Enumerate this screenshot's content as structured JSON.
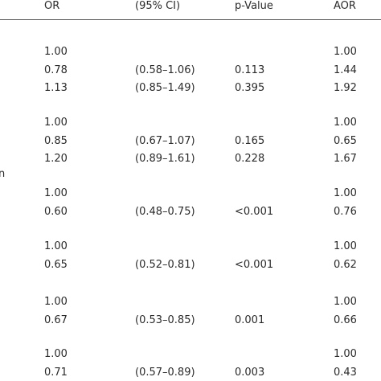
{
  "table": {
    "header": {
      "or": "OR",
      "ci": "(95% CI)",
      "p": "p-Value",
      "aor": "AOR"
    },
    "groups": [
      {
        "rows": [
          {
            "or": "1.00",
            "aor": "1.00"
          },
          {
            "or": "0.78",
            "ci": "(0.58–1.06)",
            "p": "0.113",
            "aor": "1.44"
          },
          {
            "or": "1.13",
            "ci": "(0.85–1.49)",
            "p": "0.395",
            "aor": "1.92"
          }
        ]
      },
      {
        "rows": [
          {
            "or": "1.00",
            "aor": "1.00"
          },
          {
            "or": "0.85",
            "ci": "(0.67–1.07)",
            "p": "0.165",
            "aor": "0.65"
          },
          {
            "or": "1.20",
            "ci": "(0.89–1.61)",
            "p": "0.228",
            "aor": "1.67"
          }
        ]
      },
      {
        "label": "n",
        "rows": [
          {
            "or": "1.00",
            "aor": "1.00"
          },
          {
            "or": "0.60",
            "ci": "(0.48–0.75)",
            "p": "<0.001",
            "aor": "0.76"
          }
        ]
      },
      {
        "rows": [
          {
            "or": "1.00",
            "aor": "1.00"
          },
          {
            "or": "0.65",
            "ci": "(0.52–0.81)",
            "p": "<0.001",
            "aor": "0.62"
          }
        ]
      },
      {
        "rows": [
          {
            "or": "1.00",
            "aor": "1.00"
          },
          {
            "or": "0.67",
            "ci": "(0.53–0.85)",
            "p": "0.001",
            "aor": "0.66"
          }
        ]
      },
      {
        "rows": [
          {
            "or": "1.00",
            "aor": "1.00"
          },
          {
            "or": "0.71",
            "ci": "(0.57–0.89)",
            "p": "0.003",
            "aor": "0.43"
          }
        ]
      }
    ]
  }
}
